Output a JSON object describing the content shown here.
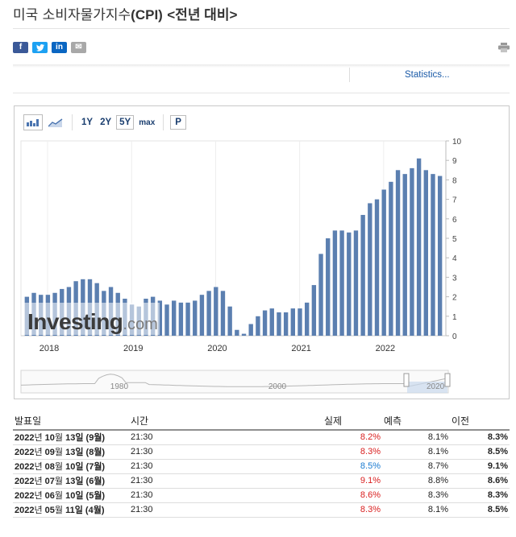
{
  "page": {
    "title_ko": "미국 소비자물가지수",
    "title_code": "(CPI)",
    "title_suffix": "<전년 대비>",
    "stats_link": "Statistics..."
  },
  "share": {
    "facebook": "f",
    "twitter": "t",
    "linkedin": "in",
    "mail": "✉"
  },
  "toolbar": {
    "range_1y": "1Y",
    "range_2y": "2Y",
    "range_5y": "5Y",
    "range_max": "max",
    "p_button": "P",
    "active_range": "5Y"
  },
  "logo": {
    "main": "Investing",
    "dot": ".com"
  },
  "chart_data": {
    "type": "bar",
    "title": "",
    "bar_color": "#5b7fb0",
    "x_ticks": [
      "2018",
      "2019",
      "2020",
      "2021",
      "2022"
    ],
    "y_ticks": [
      "0",
      "1",
      "2",
      "3",
      "4",
      "5",
      "6",
      "7",
      "8",
      "9",
      "10"
    ],
    "ylim": [
      0,
      10
    ],
    "categories": [
      "2017-10",
      "2017-11",
      "2017-12",
      "2018-01",
      "2018-02",
      "2018-03",
      "2018-04",
      "2018-05",
      "2018-06",
      "2018-07",
      "2018-08",
      "2018-09",
      "2018-10",
      "2018-11",
      "2018-12",
      "2019-01",
      "2019-02",
      "2019-03",
      "2019-04",
      "2019-05",
      "2019-06",
      "2019-07",
      "2019-08",
      "2019-09",
      "2019-10",
      "2019-11",
      "2019-12",
      "2020-01",
      "2020-02",
      "2020-03",
      "2020-04",
      "2020-05",
      "2020-06",
      "2020-07",
      "2020-08",
      "2020-09",
      "2020-10",
      "2020-11",
      "2020-12",
      "2021-01",
      "2021-02",
      "2021-03",
      "2021-04",
      "2021-05",
      "2021-06",
      "2021-07",
      "2021-08",
      "2021-09",
      "2021-10",
      "2021-11",
      "2021-12",
      "2022-01",
      "2022-02",
      "2022-03",
      "2022-04",
      "2022-05",
      "2022-06",
      "2022-07",
      "2022-08",
      "2022-09"
    ],
    "values": [
      2.0,
      2.2,
      2.1,
      2.1,
      2.2,
      2.4,
      2.5,
      2.8,
      2.9,
      2.9,
      2.7,
      2.3,
      2.5,
      2.2,
      1.9,
      1.6,
      1.5,
      1.9,
      2.0,
      1.8,
      1.6,
      1.8,
      1.7,
      1.7,
      1.8,
      2.1,
      2.3,
      2.5,
      2.3,
      1.5,
      0.3,
      0.1,
      0.6,
      1.0,
      1.3,
      1.4,
      1.2,
      1.2,
      1.4,
      1.4,
      1.7,
      2.6,
      4.2,
      5.0,
      5.4,
      5.4,
      5.3,
      5.4,
      6.2,
      6.8,
      7.0,
      7.5,
      7.9,
      8.5,
      8.3,
      8.6,
      9.1,
      8.5,
      8.3,
      8.2
    ],
    "navigator": {
      "x_ticks": [
        "1980",
        "2000",
        "2020"
      ]
    }
  },
  "table": {
    "headers": [
      "발표일",
      "시간",
      "실제",
      "예측",
      "이전"
    ],
    "rows": [
      {
        "date_y": "2022",
        "date_mid": "년 ",
        "date_m": "10",
        "date_m_suffix": "월 ",
        "date_d": "13",
        "date_tail": "일 (9월)",
        "time": "21:30",
        "actual": "8.2%",
        "actual_color": "red",
        "forecast": "8.1%",
        "previous": "8.3%"
      },
      {
        "date_y": "2022",
        "date_mid": "년 ",
        "date_m": "09",
        "date_m_suffix": "월 ",
        "date_d": "13",
        "date_tail": "일 (8월)",
        "time": "21:30",
        "actual": "8.3%",
        "actual_color": "red",
        "forecast": "8.1%",
        "previous": "8.5%"
      },
      {
        "date_y": "2022",
        "date_mid": "년 ",
        "date_m": "08",
        "date_m_suffix": "월 ",
        "date_d": "10",
        "date_tail": "일 (7월)",
        "time": "21:30",
        "actual": "8.5%",
        "actual_color": "blue",
        "forecast": "8.7%",
        "previous": "9.1%"
      },
      {
        "date_y": "2022",
        "date_mid": "년 ",
        "date_m": "07",
        "date_m_suffix": "월 ",
        "date_d": "13",
        "date_tail": "일 (6월)",
        "time": "21:30",
        "actual": "9.1%",
        "actual_color": "red",
        "forecast": "8.8%",
        "previous": "8.6%"
      },
      {
        "date_y": "2022",
        "date_mid": "년 ",
        "date_m": "06",
        "date_m_suffix": "월 ",
        "date_d": "10",
        "date_tail": "일 (5월)",
        "time": "21:30",
        "actual": "8.6%",
        "actual_color": "red",
        "forecast": "8.3%",
        "previous": "8.3%"
      },
      {
        "date_y": "2022",
        "date_mid": "년 ",
        "date_m": "05",
        "date_m_suffix": "월 ",
        "date_d": "11",
        "date_tail": "일 (4월)",
        "time": "21:30",
        "actual": "8.3%",
        "actual_color": "red",
        "forecast": "8.1%",
        "previous": "8.5%"
      }
    ]
  }
}
